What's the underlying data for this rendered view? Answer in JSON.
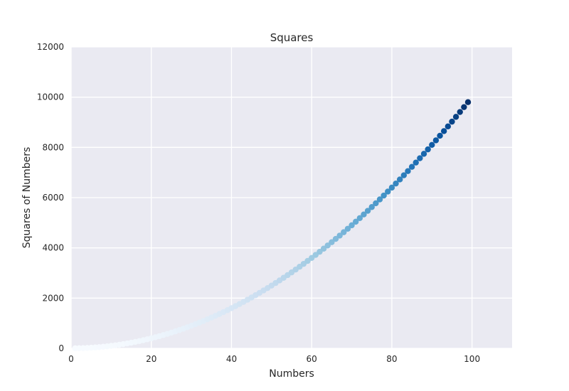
{
  "chart_data": {
    "type": "scatter",
    "title": "Squares",
    "xlabel": "Numbers",
    "ylabel": "Squares of Numbers",
    "xlim": [
      0,
      110
    ],
    "ylim": [
      0,
      12000
    ],
    "grid": true,
    "xticks": [
      0,
      20,
      40,
      60,
      80,
      100
    ],
    "yticks": [
      0,
      2000,
      4000,
      6000,
      8000,
      10000,
      12000
    ],
    "colormap": "Blues",
    "colormap_stops": [
      "#f7fbff",
      "#deebf7",
      "#c6dbef",
      "#9ecae1",
      "#6baed6",
      "#4292c6",
      "#2171b5",
      "#08519c",
      "#08306b"
    ],
    "background_color": "#eaeaf2",
    "grid_color": "#ffffff",
    "series": [
      {
        "x": [
          1,
          2,
          3,
          4,
          5,
          6,
          7,
          8,
          9,
          10,
          11,
          12,
          13,
          14,
          15,
          16,
          17,
          18,
          19,
          20,
          21,
          22,
          23,
          24,
          25,
          26,
          27,
          28,
          29,
          30,
          31,
          32,
          33,
          34,
          35,
          36,
          37,
          38,
          39,
          40,
          41,
          42,
          43,
          44,
          45,
          46,
          47,
          48,
          49,
          50,
          51,
          52,
          53,
          54,
          55,
          56,
          57,
          58,
          59,
          60,
          61,
          62,
          63,
          64,
          65,
          66,
          67,
          68,
          69,
          70,
          71,
          72,
          73,
          74,
          75,
          76,
          77,
          78,
          79,
          80,
          81,
          82,
          83,
          84,
          85,
          86,
          87,
          88,
          89,
          90,
          91,
          92,
          93,
          94,
          95,
          96,
          97,
          98,
          99
        ],
        "y": [
          1,
          4,
          9,
          16,
          25,
          36,
          49,
          64,
          81,
          100,
          121,
          144,
          169,
          196,
          225,
          256,
          289,
          324,
          361,
          400,
          441,
          484,
          529,
          576,
          625,
          676,
          729,
          784,
          841,
          900,
          961,
          1024,
          1089,
          1156,
          1225,
          1296,
          1369,
          1444,
          1521,
          1600,
          1681,
          1764,
          1849,
          1936,
          2025,
          2116,
          2209,
          2304,
          2401,
          2500,
          2601,
          2704,
          2809,
          2916,
          3025,
          3136,
          3249,
          3364,
          3481,
          3600,
          3721,
          3844,
          3969,
          4096,
          4225,
          4356,
          4489,
          4624,
          4761,
          4900,
          5041,
          5184,
          5329,
          5476,
          5625,
          5776,
          5929,
          6084,
          6241,
          6400,
          6561,
          6724,
          6889,
          7056,
          7225,
          7396,
          7569,
          7744,
          7921,
          8100,
          8281,
          8464,
          8649,
          8836,
          9025,
          9216,
          9409,
          9604,
          9801
        ]
      }
    ]
  }
}
